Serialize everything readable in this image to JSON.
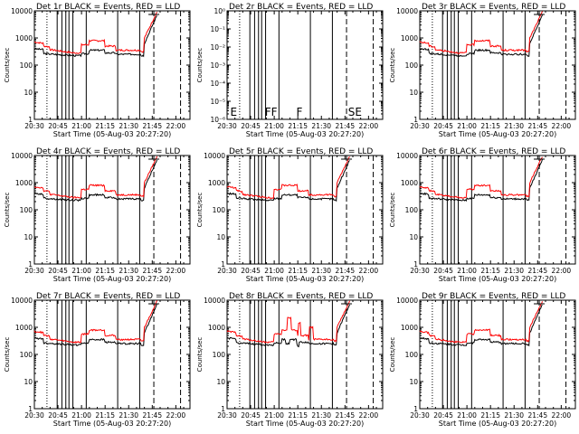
{
  "colors": {
    "events": "#000000",
    "lld": "#ff0000",
    "background": "#ffffff",
    "axes": "#000000"
  },
  "chart_data": [
    {
      "type": "line",
      "title": "Det 1r BLACK = Events, RED = LLD",
      "ylabel": "Counts/sec",
      "xlabel": "Start Time (05-Aug-03 20:27:20)",
      "xticks": [
        "20:30",
        "20:45",
        "21:00",
        "21:15",
        "21:30",
        "21:45",
        "22:00"
      ],
      "yticks": [
        "1",
        "10",
        "100",
        "1000",
        "10000"
      ],
      "profile": "normal",
      "letters": []
    },
    {
      "type": "line",
      "title": "Det 2r BLACK = Events, RED = LLD",
      "ylabel": "Counts/sec",
      "xlabel": "Start Time (05-Aug-03 20:27:20)",
      "xticks": [
        "20:30",
        "20:45",
        "21:00",
        "21:15",
        "21:30",
        "21:45",
        "22:00"
      ],
      "yticks": [
        "10⁻⁶",
        "10⁻⁵",
        "10⁻⁴",
        "10⁻³",
        "10⁻²",
        "10⁻¹",
        "10⁰"
      ],
      "profile": "empty",
      "letters": [
        "E",
        "F",
        "F",
        "F",
        "SE"
      ]
    },
    {
      "type": "line",
      "title": "Det 3r BLACK = Events, RED = LLD",
      "ylabel": "Counts/sec",
      "xlabel": "Start Time (05-Aug-03 20:27:20)",
      "xticks": [
        "20:30",
        "20:45",
        "21:00",
        "21:15",
        "21:30",
        "21:45",
        "22:00"
      ],
      "yticks": [
        "1",
        "10",
        "100",
        "1000",
        "10000"
      ],
      "profile": "normal",
      "letters": []
    },
    {
      "type": "line",
      "title": "Det 4r BLACK = Events, RED = LLD",
      "ylabel": "Counts/sec",
      "xlabel": "Start Time (05-Aug-03 20:27:20)",
      "xticks": [
        "20:30",
        "20:45",
        "21:00",
        "21:15",
        "21:30",
        "21:45",
        "22:00"
      ],
      "yticks": [
        "1",
        "10",
        "100",
        "1000",
        "10000"
      ],
      "profile": "normal",
      "letters": []
    },
    {
      "type": "line",
      "title": "Det 5r BLACK = Events, RED = LLD",
      "ylabel": "Counts/sec",
      "xlabel": "Start Time (05-Aug-03 20:27:20)",
      "xticks": [
        "20:30",
        "20:45",
        "21:00",
        "21:15",
        "21:30",
        "21:45",
        "22:00"
      ],
      "yticks": [
        "1",
        "10",
        "100",
        "1000",
        "10000"
      ],
      "profile": "normal",
      "letters": []
    },
    {
      "type": "line",
      "title": "Det 6r BLACK = Events, RED = LLD",
      "ylabel": "Counts/sec",
      "xlabel": "Start Time (05-Aug-03 20:27:20)",
      "xticks": [
        "20:30",
        "20:45",
        "21:00",
        "21:15",
        "21:30",
        "21:45",
        "22:00"
      ],
      "yticks": [
        "1",
        "10",
        "100",
        "1000",
        "10000"
      ],
      "profile": "normal",
      "letters": []
    },
    {
      "type": "line",
      "title": "Det 7r BLACK = Events, RED = LLD",
      "ylabel": "Counts/sec",
      "xlabel": "Start Time (05-Aug-03 20:27:20)",
      "xticks": [
        "20:30",
        "20:45",
        "21:00",
        "21:15",
        "21:30",
        "21:45",
        "22:00"
      ],
      "yticks": [
        "1",
        "10",
        "100",
        "1000",
        "10000"
      ],
      "profile": "normal",
      "letters": []
    },
    {
      "type": "line",
      "title": "Det 8r BLACK = Events, RED = LLD",
      "ylabel": "Counts/sec",
      "xlabel": "Start Time (05-Aug-03 20:27:20)",
      "xticks": [
        "20:30",
        "20:45",
        "21:00",
        "21:15",
        "21:30",
        "21:45",
        "22:00"
      ],
      "yticks": [
        "1",
        "10",
        "100",
        "1000",
        "10000"
      ],
      "profile": "spiky",
      "letters": []
    },
    {
      "type": "line",
      "title": "Det 9r BLACK = Events, RED = LLD",
      "ylabel": "Counts/sec",
      "xlabel": "Start Time (05-Aug-03 20:27:20)",
      "xticks": [
        "20:30",
        "20:45",
        "21:00",
        "21:15",
        "21:30",
        "21:45",
        "22:00"
      ],
      "yticks": [
        "1",
        "10",
        "100",
        "1000",
        "10000"
      ],
      "profile": "normal",
      "letters": []
    }
  ]
}
